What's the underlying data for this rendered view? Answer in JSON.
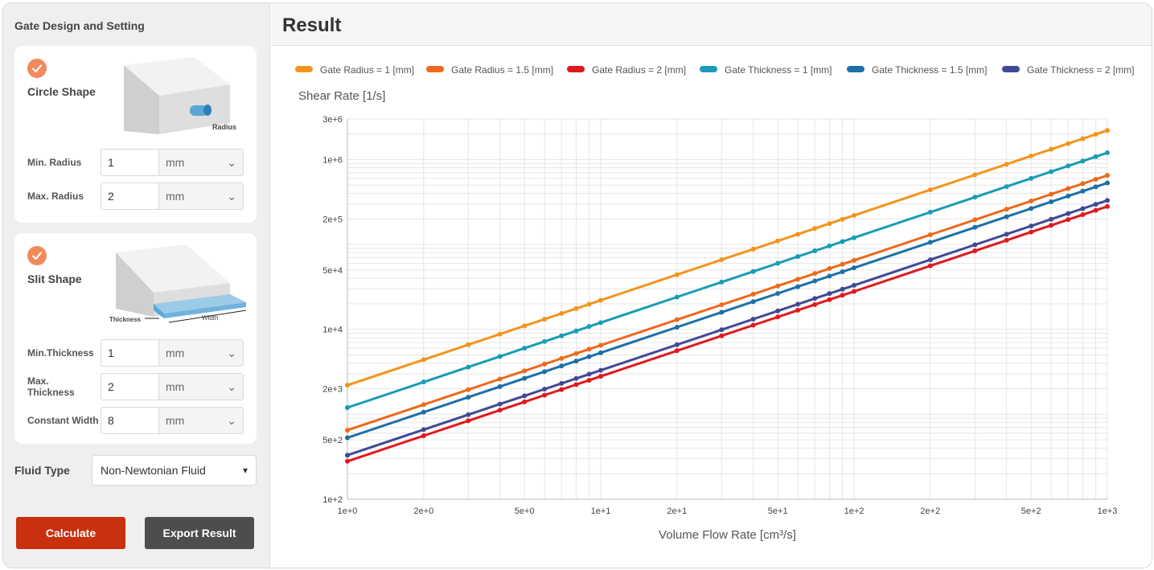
{
  "sidebar": {
    "title": "Gate Design and Setting",
    "circle": {
      "title": "Circle Shape",
      "image_label": "Radius",
      "min_label": "Min. Radius",
      "min_value": "1",
      "min_unit": "mm",
      "max_label": "Max. Radius",
      "max_value": "2",
      "max_unit": "mm"
    },
    "slit": {
      "title": "Slit Shape",
      "image_label_thickness": "Thickness",
      "image_label_width": "Width",
      "min_label": "Min.Thickness",
      "min_value": "1",
      "min_unit": "mm",
      "max_label": "Max. Thickness",
      "max_value": "2",
      "max_unit": "mm",
      "width_label": "Constant Width",
      "width_value": "8",
      "width_unit": "mm"
    },
    "fluid_type_label": "Fluid Type",
    "fluid_type_value": "Non-Newtonian Fluid",
    "calculate_label": "Calculate",
    "export_label": "Export Result"
  },
  "main": {
    "title": "Result"
  },
  "colors": {
    "accent_check": "#f28a5b",
    "calculate_button": "#c8300e",
    "export_button": "#4d4d4d"
  },
  "chart_data": {
    "type": "line",
    "title": "",
    "ylabel": "Shear Rate [1/s]",
    "xlabel": "Volume Flow Rate [cm³/s]",
    "xscale": "log",
    "yscale": "log",
    "xlim": [
      1,
      1000
    ],
    "ylim": [
      100,
      3000000
    ],
    "grid": true,
    "legend_position": "top",
    "x_ticks": [
      {
        "v": 1,
        "label": "1e+0"
      },
      {
        "v": 2,
        "label": "2e+0"
      },
      {
        "v": 5,
        "label": "5e+0"
      },
      {
        "v": 10,
        "label": "1e+1"
      },
      {
        "v": 20,
        "label": "2e+1"
      },
      {
        "v": 50,
        "label": "5e+1"
      },
      {
        "v": 100,
        "label": "1e+2"
      },
      {
        "v": 200,
        "label": "2e+2"
      },
      {
        "v": 500,
        "label": "5e+2"
      },
      {
        "v": 1000,
        "label": "1e+3"
      }
    ],
    "y_ticks": [
      {
        "v": 100,
        "label": "1e+2"
      },
      {
        "v": 500,
        "label": "5e+2"
      },
      {
        "v": 2000,
        "label": "2e+3"
      },
      {
        "v": 10000,
        "label": "1e+4"
      },
      {
        "v": 50000,
        "label": "5e+4"
      },
      {
        "v": 200000,
        "label": "2e+5"
      },
      {
        "v": 1000000,
        "label": "1e+6"
      },
      {
        "v": 3000000,
        "label": "3e+6"
      }
    ],
    "x": [
      1,
      2,
      3,
      4,
      5,
      6,
      7,
      8,
      9,
      10,
      20,
      30,
      40,
      50,
      60,
      70,
      80,
      90,
      100,
      200,
      300,
      400,
      500,
      600,
      700,
      800,
      900,
      1000
    ],
    "series": [
      {
        "name": "Gate Radius = 1 [mm]",
        "color": "#f2951c",
        "y_at_x1": 2200,
        "y_at_x1000": 2200000
      },
      {
        "name": "Gate Radius = 1.5 [mm]",
        "color": "#ed6a1c",
        "y_at_x1": 650,
        "y_at_x1000": 650000
      },
      {
        "name": "Gate Radius = 2 [mm]",
        "color": "#e0191e",
        "y_at_x1": 280,
        "y_at_x1000": 280000
      },
      {
        "name": "Gate Thickness = 1 [mm]",
        "color": "#189cb8",
        "y_at_x1": 1200,
        "y_at_x1000": 1200000
      },
      {
        "name": "Gate Thickness = 1.5 [mm]",
        "color": "#1d6fa8",
        "y_at_x1": 530,
        "y_at_x1000": 530000
      },
      {
        "name": "Gate Thickness = 2 [mm]",
        "color": "#3f4a96",
        "y_at_x1": 330,
        "y_at_x1000": 330000
      }
    ]
  }
}
